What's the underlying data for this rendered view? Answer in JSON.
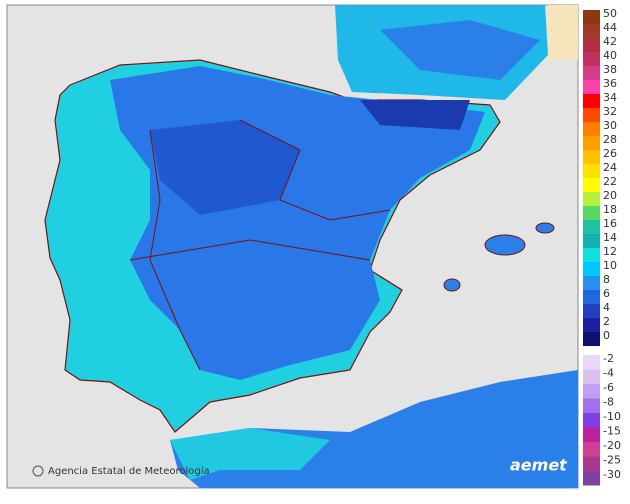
{
  "credit": "Agencia Estatal de Meteorología",
  "logo": "aemet",
  "legend": {
    "upper": [
      {
        "value": 50,
        "color": "#8b3a10"
      },
      {
        "value": 44,
        "color": "#a03a28"
      },
      {
        "value": 42,
        "color": "#b03040"
      },
      {
        "value": 40,
        "color": "#c03060"
      },
      {
        "value": 38,
        "color": "#d83c88"
      },
      {
        "value": 36,
        "color": "#ff40a8"
      },
      {
        "value": 34,
        "color": "#ff0000"
      },
      {
        "value": 32,
        "color": "#ff4800"
      },
      {
        "value": 30,
        "color": "#ff8000"
      },
      {
        "value": 28,
        "color": "#ffa000"
      },
      {
        "value": 26,
        "color": "#ffc000"
      },
      {
        "value": 24,
        "color": "#ffe000"
      },
      {
        "value": 22,
        "color": "#ffff00"
      },
      {
        "value": 20,
        "color": "#b8f040"
      },
      {
        "value": 18,
        "color": "#58d860"
      },
      {
        "value": 16,
        "color": "#20c0a0"
      },
      {
        "value": 14,
        "color": "#18b0b0"
      },
      {
        "value": 12,
        "color": "#10e0e0"
      },
      {
        "value": 10,
        "color": "#00c8ff"
      },
      {
        "value": 8,
        "color": "#2890f0"
      },
      {
        "value": 6,
        "color": "#2068e0"
      },
      {
        "value": 4,
        "color": "#2040c0"
      },
      {
        "value": 2,
        "color": "#1c20a0"
      },
      {
        "value": 0,
        "color": "#101070"
      }
    ],
    "lower": [
      {
        "value": -2,
        "color": "#e8d8f4"
      },
      {
        "value": -4,
        "color": "#d8c0f0"
      },
      {
        "value": -6,
        "color": "#c0a0f0"
      },
      {
        "value": -8,
        "color": "#a070f0"
      },
      {
        "value": -10,
        "color": "#8040e0"
      },
      {
        "value": -15,
        "color": "#c020a0"
      },
      {
        "value": -20,
        "color": "#d04090"
      },
      {
        "value": -25,
        "color": "#a83890"
      },
      {
        "value": -30,
        "color": "#8040a0"
      }
    ]
  }
}
